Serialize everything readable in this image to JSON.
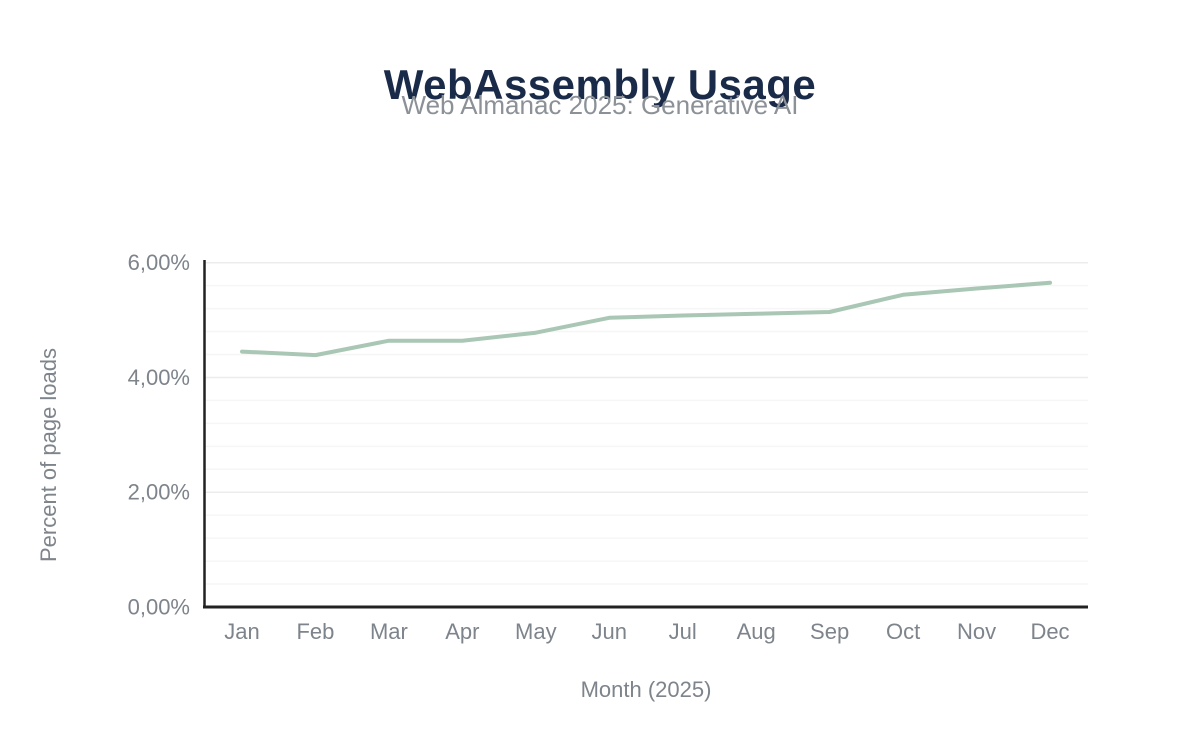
{
  "chart_data": {
    "type": "line",
    "title": "WebAssembly Usage",
    "subtitle": "Web Almanac 2025: Generative AI",
    "categories": [
      "Jan",
      "Feb",
      "Mar",
      "Apr",
      "May",
      "Jun",
      "Jul",
      "Aug",
      "Sep",
      "Oct",
      "Nov",
      "Dec"
    ],
    "series": [
      {
        "name": "Percent of page loads",
        "values": [
          4.45,
          4.39,
          4.64,
          4.64,
          4.78,
          5.04,
          5.08,
          5.11,
          5.14,
          5.44,
          5.55,
          5.65
        ]
      }
    ],
    "xlabel": "Month (2025)",
    "ylabel": "Percent of page loads",
    "ylim": [
      0,
      6
    ],
    "y_ticks": [
      {
        "value": 0,
        "label": "0,00%"
      },
      {
        "value": 2,
        "label": "2,00%"
      },
      {
        "value": 4,
        "label": "4,00%"
      },
      {
        "value": 6,
        "label": "6,00%"
      }
    ],
    "y_minor_step": 0.4,
    "grid": true,
    "legend": "none",
    "colors": {
      "title": "#1a2b49",
      "subtitle": "#8b9196",
      "line": "#a9c7b4",
      "axis": "#222222",
      "tick_label": "#7e848b",
      "axis_title": "#7e848b",
      "minor_grid": "#f6f6f6",
      "major_grid": "#ececec"
    }
  }
}
